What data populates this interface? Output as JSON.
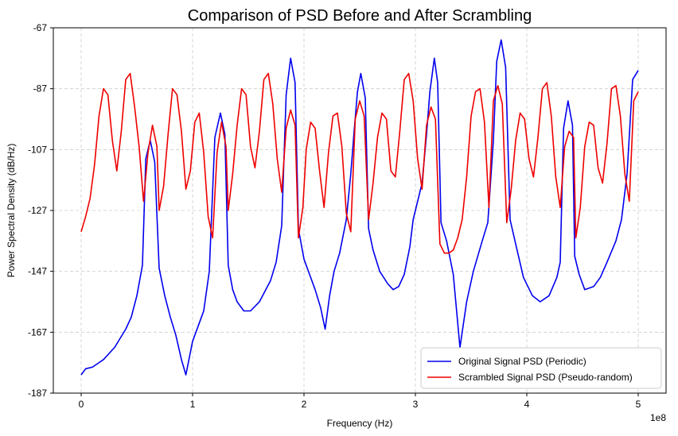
{
  "chart_data": {
    "type": "line",
    "title": "Comparison of PSD Before and After Scrambling",
    "xlabel": "Frequency (Hz)",
    "ylabel": "Power Spectral Density (dB/Hz)",
    "x_offset_label": "1e8",
    "xlim": [
      -0.25,
      5.25
    ],
    "ylim": [
      -187,
      -67
    ],
    "xticks": [
      0,
      1,
      2,
      3,
      4,
      5
    ],
    "xtick_labels": [
      "0",
      "1",
      "2",
      "3",
      "4",
      "5"
    ],
    "yticks": [
      -67,
      -87,
      -107,
      -127,
      -147,
      -167,
      -187
    ],
    "ytick_labels": [
      "-67",
      "-87",
      "-107",
      "-127",
      "-147",
      "-167",
      "-187"
    ],
    "grid": true,
    "legend_position": "lower-right",
    "series": [
      {
        "name": "Original Signal PSD (Periodic)",
        "color": "#0000ee",
        "points": [
          [
            0.0,
            -181
          ],
          [
            0.04,
            -179
          ],
          [
            0.1,
            -178.5
          ],
          [
            0.2,
            -176
          ],
          [
            0.3,
            -172
          ],
          [
            0.4,
            -166
          ],
          [
            0.45,
            -162
          ],
          [
            0.5,
            -155
          ],
          [
            0.55,
            -145
          ],
          [
            0.58,
            -110
          ],
          [
            0.62,
            -104
          ],
          [
            0.66,
            -111
          ],
          [
            0.7,
            -146
          ],
          [
            0.75,
            -155
          ],
          [
            0.8,
            -162
          ],
          [
            0.85,
            -168
          ],
          [
            0.9,
            -176
          ],
          [
            0.94,
            -181
          ],
          [
            1.0,
            -170
          ],
          [
            1.1,
            -160
          ],
          [
            1.15,
            -147
          ],
          [
            1.2,
            -103
          ],
          [
            1.25,
            -95
          ],
          [
            1.29,
            -102
          ],
          [
            1.32,
            -145
          ],
          [
            1.36,
            -153
          ],
          [
            1.4,
            -157
          ],
          [
            1.46,
            -160
          ],
          [
            1.52,
            -160
          ],
          [
            1.6,
            -157
          ],
          [
            1.7,
            -150
          ],
          [
            1.75,
            -144
          ],
          [
            1.8,
            -132
          ],
          [
            1.84,
            -89
          ],
          [
            1.88,
            -77
          ],
          [
            1.92,
            -85
          ],
          [
            1.95,
            -133
          ],
          [
            2.0,
            -143
          ],
          [
            2.05,
            -148
          ],
          [
            2.1,
            -153
          ],
          [
            2.15,
            -159
          ],
          [
            2.19,
            -166
          ],
          [
            2.23,
            -155
          ],
          [
            2.27,
            -147
          ],
          [
            2.32,
            -141
          ],
          [
            2.38,
            -130
          ],
          [
            2.42,
            -115
          ],
          [
            2.45,
            -101
          ],
          [
            2.48,
            -88
          ],
          [
            2.51,
            -82
          ],
          [
            2.55,
            -90
          ],
          [
            2.58,
            -133
          ],
          [
            2.62,
            -140
          ],
          [
            2.68,
            -147
          ],
          [
            2.75,
            -151
          ],
          [
            2.8,
            -153
          ],
          [
            2.85,
            -152
          ],
          [
            2.9,
            -148
          ],
          [
            2.95,
            -139
          ],
          [
            2.98,
            -130
          ],
          [
            3.0,
            -127
          ],
          [
            3.06,
            -118
          ],
          [
            3.1,
            -102
          ],
          [
            3.13,
            -88
          ],
          [
            3.17,
            -77
          ],
          [
            3.2,
            -85
          ],
          [
            3.23,
            -131
          ],
          [
            3.28,
            -137
          ],
          [
            3.34,
            -148
          ],
          [
            3.38,
            -164
          ],
          [
            3.4,
            -172
          ],
          [
            3.46,
            -157
          ],
          [
            3.52,
            -147
          ],
          [
            3.6,
            -137
          ],
          [
            3.65,
            -131
          ],
          [
            3.7,
            -104
          ],
          [
            3.73,
            -78
          ],
          [
            3.77,
            -71
          ],
          [
            3.81,
            -80
          ],
          [
            3.85,
            -130
          ],
          [
            3.9,
            -138
          ],
          [
            3.97,
            -149
          ],
          [
            4.05,
            -155
          ],
          [
            4.12,
            -157
          ],
          [
            4.2,
            -155
          ],
          [
            4.27,
            -149
          ],
          [
            4.3,
            -144
          ],
          [
            4.33,
            -100
          ],
          [
            4.37,
            -91
          ],
          [
            4.41,
            -99
          ],
          [
            4.43,
            -142
          ],
          [
            4.47,
            -148
          ],
          [
            4.52,
            -153
          ],
          [
            4.6,
            -152
          ],
          [
            4.66,
            -149
          ],
          [
            4.72,
            -144
          ],
          [
            4.8,
            -137
          ],
          [
            4.85,
            -130
          ],
          [
            4.9,
            -115
          ],
          [
            4.95,
            -84
          ],
          [
            5.0,
            -81
          ]
        ]
      },
      {
        "name": "Scrambled Signal PSD (Pseudo-random)",
        "color": "#ee0000",
        "points": [
          [
            0.0,
            -134
          ],
          [
            0.04,
            -129
          ],
          [
            0.08,
            -123
          ],
          [
            0.12,
            -112
          ],
          [
            0.16,
            -96
          ],
          [
            0.2,
            -87
          ],
          [
            0.24,
            -89
          ],
          [
            0.28,
            -104
          ],
          [
            0.32,
            -114
          ],
          [
            0.36,
            -101
          ],
          [
            0.4,
            -84
          ],
          [
            0.44,
            -82
          ],
          [
            0.48,
            -93
          ],
          [
            0.52,
            -106
          ],
          [
            0.56,
            -124
          ],
          [
            0.6,
            -108
          ],
          [
            0.64,
            -99
          ],
          [
            0.68,
            -106
          ],
          [
            0.7,
            -127
          ],
          [
            0.74,
            -119
          ],
          [
            0.78,
            -102
          ],
          [
            0.82,
            -87
          ],
          [
            0.86,
            -89
          ],
          [
            0.9,
            -101
          ],
          [
            0.94,
            -120
          ],
          [
            0.98,
            -114
          ],
          [
            1.02,
            -98
          ],
          [
            1.06,
            -95
          ],
          [
            1.1,
            -108
          ],
          [
            1.14,
            -129
          ],
          [
            1.18,
            -136
          ],
          [
            1.22,
            -108
          ],
          [
            1.26,
            -98
          ],
          [
            1.3,
            -106
          ],
          [
            1.32,
            -127
          ],
          [
            1.36,
            -115
          ],
          [
            1.4,
            -99
          ],
          [
            1.44,
            -87
          ],
          [
            1.48,
            -89
          ],
          [
            1.52,
            -106
          ],
          [
            1.56,
            -113
          ],
          [
            1.6,
            -101
          ],
          [
            1.64,
            -84
          ],
          [
            1.68,
            -82
          ],
          [
            1.72,
            -92
          ],
          [
            1.76,
            -110
          ],
          [
            1.8,
            -121
          ],
          [
            1.84,
            -100
          ],
          [
            1.88,
            -94
          ],
          [
            1.92,
            -99
          ],
          [
            1.95,
            -136
          ],
          [
            1.99,
            -126
          ],
          [
            2.02,
            -107
          ],
          [
            2.06,
            -98
          ],
          [
            2.1,
            -100
          ],
          [
            2.14,
            -114
          ],
          [
            2.18,
            -126
          ],
          [
            2.22,
            -108
          ],
          [
            2.26,
            -96
          ],
          [
            2.3,
            -95
          ],
          [
            2.34,
            -106
          ],
          [
            2.38,
            -128
          ],
          [
            2.42,
            -134
          ],
          [
            2.46,
            -97
          ],
          [
            2.5,
            -91
          ],
          [
            2.54,
            -96
          ],
          [
            2.58,
            -130
          ],
          [
            2.62,
            -118
          ],
          [
            2.66,
            -103
          ],
          [
            2.7,
            -95
          ],
          [
            2.74,
            -97
          ],
          [
            2.78,
            -114
          ],
          [
            2.82,
            -116
          ],
          [
            2.86,
            -101
          ],
          [
            2.9,
            -84
          ],
          [
            2.94,
            -82
          ],
          [
            2.98,
            -91
          ],
          [
            3.02,
            -110
          ],
          [
            3.06,
            -120
          ],
          [
            3.1,
            -99
          ],
          [
            3.14,
            -93
          ],
          [
            3.18,
            -97
          ],
          [
            3.22,
            -138
          ],
          [
            3.26,
            -141
          ],
          [
            3.3,
            -141
          ],
          [
            3.34,
            -140
          ],
          [
            3.38,
            -136
          ],
          [
            3.42,
            -130
          ],
          [
            3.46,
            -116
          ],
          [
            3.5,
            -96
          ],
          [
            3.54,
            -88
          ],
          [
            3.58,
            -87
          ],
          [
            3.62,
            -98
          ],
          [
            3.66,
            -126
          ],
          [
            3.7,
            -91
          ],
          [
            3.74,
            -86
          ],
          [
            3.78,
            -92
          ],
          [
            3.82,
            -131
          ],
          [
            3.86,
            -120
          ],
          [
            3.9,
            -104
          ],
          [
            3.94,
            -95
          ],
          [
            3.98,
            -97
          ],
          [
            4.02,
            -110
          ],
          [
            4.06,
            -116
          ],
          [
            4.1,
            -103
          ],
          [
            4.14,
            -87
          ],
          [
            4.18,
            -85
          ],
          [
            4.22,
            -96
          ],
          [
            4.26,
            -116
          ],
          [
            4.3,
            -126
          ],
          [
            4.34,
            -106
          ],
          [
            4.38,
            -101
          ],
          [
            4.42,
            -103
          ],
          [
            4.44,
            -136
          ],
          [
            4.48,
            -126
          ],
          [
            4.52,
            -106
          ],
          [
            4.56,
            -98
          ],
          [
            4.6,
            -99
          ],
          [
            4.64,
            -113
          ],
          [
            4.68,
            -118
          ],
          [
            4.72,
            -105
          ],
          [
            4.76,
            -87
          ],
          [
            4.8,
            -86
          ],
          [
            4.84,
            -96
          ],
          [
            4.88,
            -115
          ],
          [
            4.92,
            -124
          ],
          [
            4.96,
            -91
          ],
          [
            5.0,
            -88
          ]
        ]
      }
    ]
  }
}
